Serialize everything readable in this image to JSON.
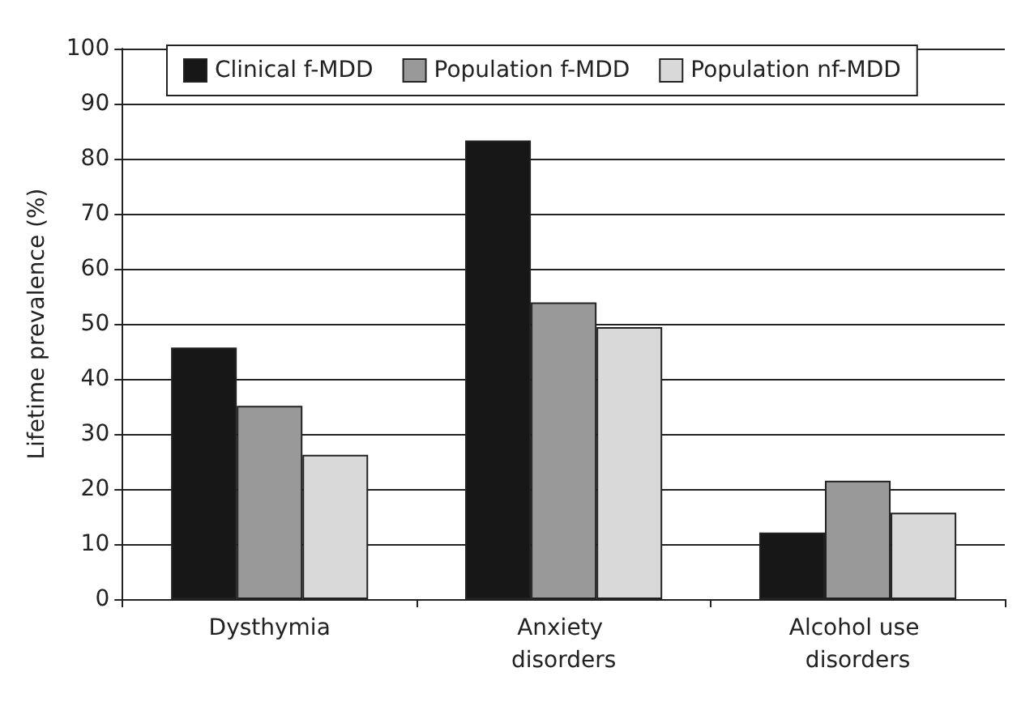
{
  "chart_data": {
    "type": "bar",
    "ylabel": "Lifetime prevalence (%)",
    "categories": [
      "Dysthymia",
      "Anxiety disorders",
      "Alcohol use disorders"
    ],
    "series": [
      {
        "name": "Clinical f-MDD",
        "color": "#171717",
        "values": [
          45.7,
          83.3,
          12.1
        ]
      },
      {
        "name": "Population f-MDD",
        "color": "#999999",
        "values": [
          35.1,
          53.9,
          21.5
        ]
      },
      {
        "name": "Population nf-MDD",
        "color": "#d9d9d9",
        "values": [
          26.2,
          49.4,
          15.7
        ]
      }
    ],
    "ylim": [
      0,
      100
    ],
    "yticks": [
      0,
      10,
      20,
      30,
      40,
      50,
      60,
      70,
      80,
      90,
      100
    ],
    "grid": "y",
    "legend": "top"
  }
}
